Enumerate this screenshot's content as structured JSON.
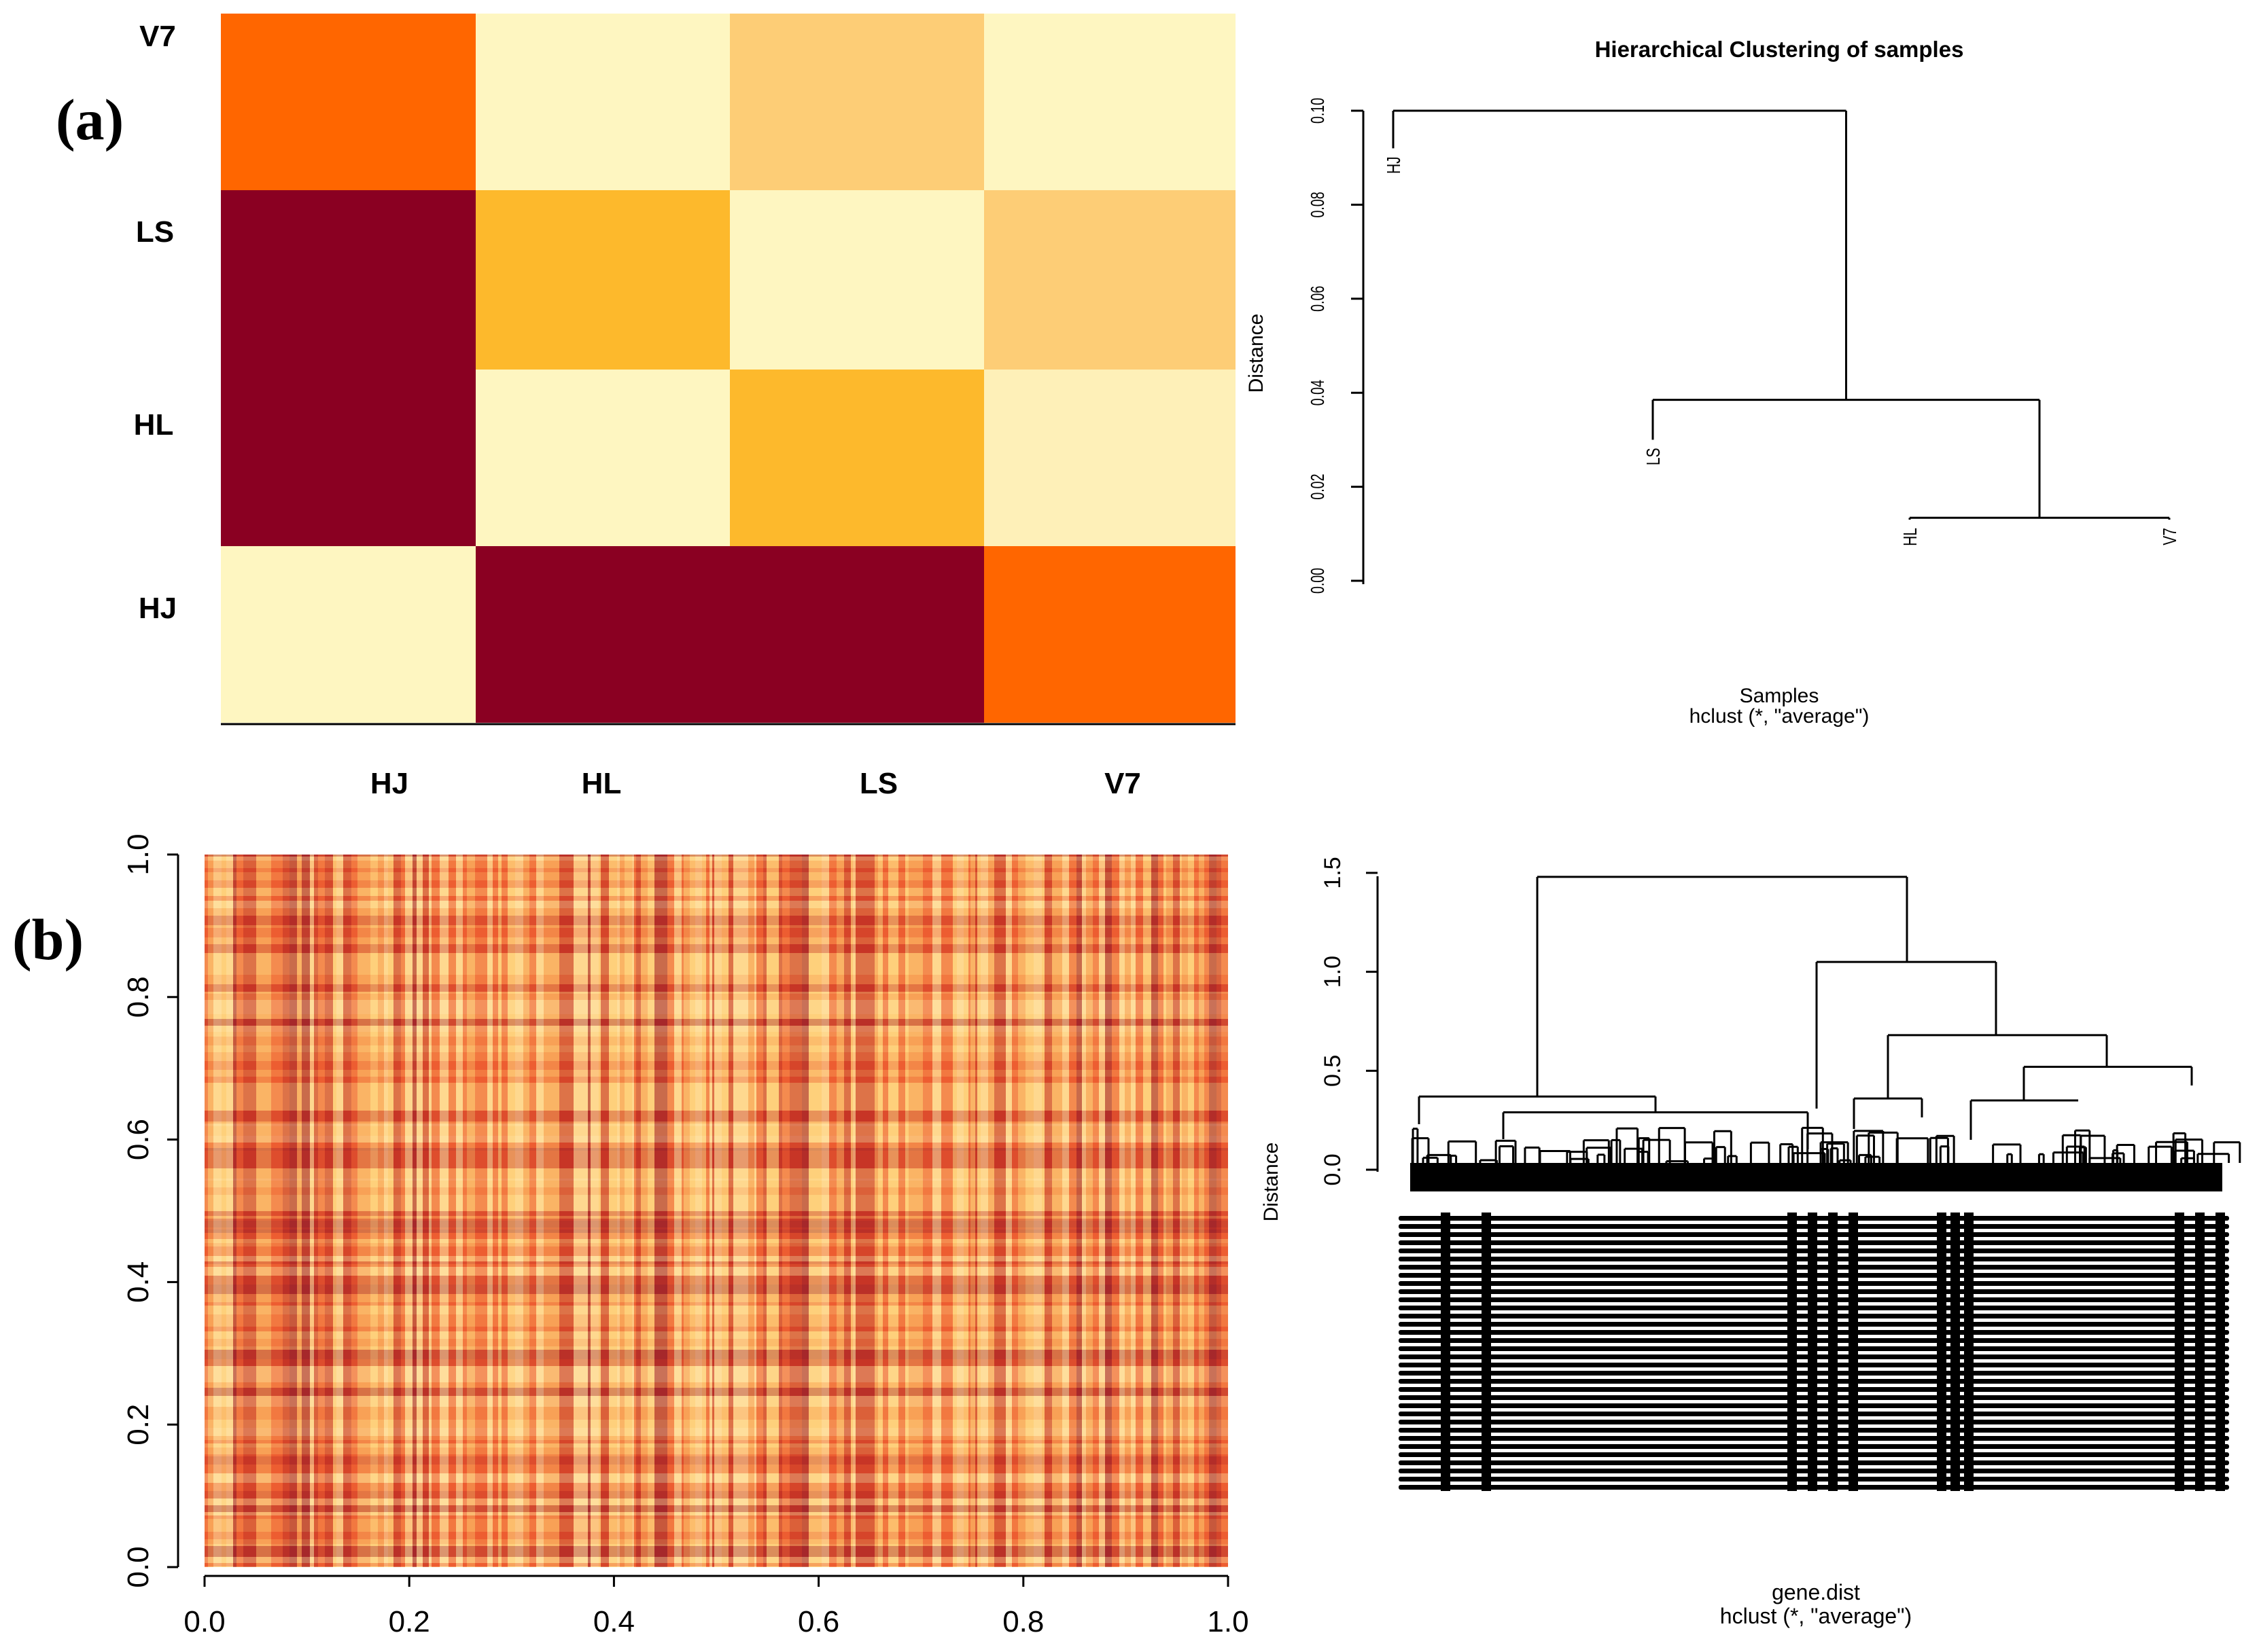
{
  "panels": {
    "a_label": "(a)",
    "b_label": "(b)"
  },
  "colors": {
    "dark_red": "#8A0022",
    "orange": "#FF6600",
    "amber": "#FDB92C",
    "light_orange": "#FDCD76",
    "pale_yellow": "#FEF6C1",
    "cream": "#FEF0B8",
    "line": "#000000"
  },
  "chart_data": [
    {
      "id": "sample-heatmap",
      "type": "heatmap",
      "title": "",
      "x_labels": [
        "HJ",
        "HL",
        "LS",
        "V7"
      ],
      "y_labels_top_to_bottom": [
        "V7",
        "LS",
        "HL",
        "HJ"
      ],
      "cells_top_to_bottom": [
        [
          "orange",
          "pale_yellow",
          "light_orange",
          "pale_yellow"
        ],
        [
          "dark_red",
          "amber",
          "pale_yellow",
          "light_orange"
        ],
        [
          "dark_red",
          "pale_yellow",
          "amber",
          "cream"
        ],
        [
          "pale_yellow",
          "dark_red",
          "dark_red",
          "orange"
        ]
      ]
    },
    {
      "id": "sample-dendrogram",
      "type": "dendrogram",
      "title": "Hierarchical Clustering of samples",
      "ylabel": "Distance",
      "xlabel": "Samples",
      "method_label": "hclust (*, \"average\")",
      "yticks": [
        "0.00",
        "0.02",
        "0.04",
        "0.06",
        "0.08",
        "0.10"
      ],
      "ylim": [
        0,
        0.1
      ],
      "leaves": [
        {
          "label": "HJ",
          "leaf_height": 0.092
        },
        {
          "label": "LS",
          "leaf_height": 0.03
        },
        {
          "label": "HL",
          "leaf_height": 0.013
        },
        {
          "label": "V7",
          "leaf_height": 0.013
        }
      ],
      "merges": [
        {
          "left": "HL",
          "right": "V7",
          "height": 0.0134
        },
        {
          "left": "LS",
          "right": "HL+V7",
          "height": 0.0385
        },
        {
          "left": "HJ",
          "right": "LS+HL+V7",
          "height": 0.1
        }
      ]
    },
    {
      "id": "gene-heatmap",
      "type": "heatmap",
      "xlim": [
        0,
        1
      ],
      "ylim": [
        0,
        1
      ],
      "xticks": [
        "0.0",
        "0.2",
        "0.4",
        "0.6",
        "0.8",
        "1.0"
      ],
      "yticks": [
        "0.0",
        "0.2",
        "0.4",
        "0.6",
        "0.8",
        "1.0"
      ]
    },
    {
      "id": "gene-dendrogram",
      "type": "dendrogram",
      "ylabel": "Distance",
      "xlabel": "gene.dist",
      "method_label": "hclust (*, \"average\")",
      "yticks": [
        "0.0",
        "0.5",
        "1.0",
        "1.5"
      ],
      "ylim": [
        0,
        1.5
      ],
      "major_merges": [
        {
          "name": "root",
          "height": 1.48
        },
        {
          "name": "right-cluster",
          "height": 1.05
        },
        {
          "name": "right-sub",
          "height": 0.68
        },
        {
          "name": "right-sub-2",
          "height": 0.52
        },
        {
          "name": "left-cluster",
          "height": 0.37
        },
        {
          "name": "left-sub",
          "height": 0.29
        },
        {
          "name": "right-inner-a",
          "height": 0.36
        },
        {
          "name": "right-inner-b",
          "height": 0.35
        }
      ]
    }
  ]
}
